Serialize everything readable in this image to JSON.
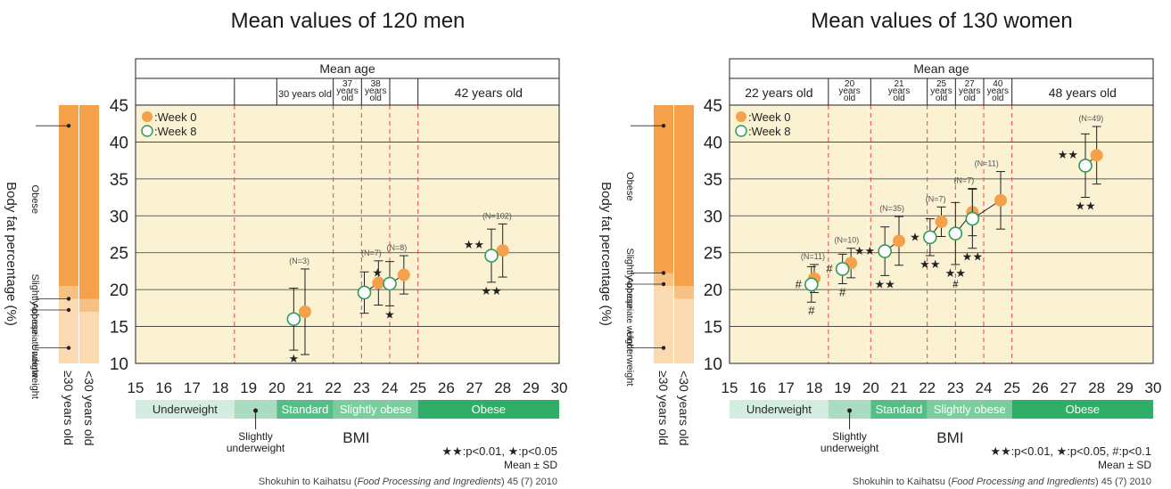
{
  "axis_labels": {
    "y": "Body fat percentage (%)",
    "x": "BMI",
    "age_header": "Mean age",
    "bar_ge30": "≥30 years old",
    "bar_lt30": "<30 years old"
  },
  "bmi_bands": [
    {
      "label": "Underweight",
      "from": 15,
      "to": 18.5,
      "color": "#d3ede0",
      "text_color": "#2a2a2a"
    },
    {
      "label": "",
      "from": 18.5,
      "to": 20,
      "color": "#a9dcc0",
      "text_color": "#2a2a2a"
    },
    {
      "label": "Standard",
      "from": 20,
      "to": 22,
      "color": "#56bd86",
      "text_color": "#ffffff"
    },
    {
      "label": "Slightly obese",
      "from": 22,
      "to": 25,
      "color": "#7acd9d",
      "text_color": "#ffffff"
    },
    {
      "label": "Obese",
      "from": 25,
      "to": 30,
      "color": "#2fae68",
      "text_color": "#ffffff"
    }
  ],
  "slightly_underweight_label": "Slightly\nunderweight",
  "legend": {
    "week0": ":Week 0",
    "week8": ":Week 8"
  },
  "colors": {
    "week0": "#f5a04a",
    "week8": "#2e9c5c",
    "plot_bg": "#fbf2d4",
    "dash": "#e04848"
  },
  "classification_labels": [
    "Obese",
    "Slightly obese",
    "Appropriate weight",
    "Underweight"
  ],
  "footer": {
    "mean_sd": "Mean ± SD",
    "source_prefix": "Shokuhin to Kaihatsu (",
    "source_italic": "Food Processing and Ingredients",
    "source_suffix": ") 45 (7) 2010"
  },
  "chart_data": [
    {
      "type": "scatter",
      "title": "Mean values of 120 men",
      "xlabel": "BMI",
      "ylabel": "Body fat percentage (%)",
      "xlim": [
        15,
        30
      ],
      "ylim": [
        10,
        45
      ],
      "xticks": [
        15,
        16,
        17,
        18,
        19,
        20,
        21,
        22,
        23,
        24,
        25,
        26,
        27,
        28,
        29,
        30
      ],
      "yticks": [
        10,
        15,
        20,
        25,
        30,
        35,
        40,
        45
      ],
      "dashed_x": [
        18.5,
        22,
        23,
        24,
        25
      ],
      "age_cells": [
        {
          "from": 15,
          "to": 18.5,
          "label": ""
        },
        {
          "from": 18.5,
          "to": 20,
          "label": ""
        },
        {
          "from": 20,
          "to": 22,
          "label": "30 years old"
        },
        {
          "from": 22,
          "to": 23,
          "label": "37\nyears\nold"
        },
        {
          "from": 23,
          "to": 24,
          "label": "38\nyears\nold"
        },
        {
          "from": 24,
          "to": 25,
          "label": ""
        },
        {
          "from": 25,
          "to": 30,
          "label": "42 years old"
        }
      ],
      "significance": "★★:p<0.01, ★:p<0.05",
      "bodyfat_bar": {
        "ge30": [
          {
            "from": 0,
            "to": 25,
            "shade": 3
          },
          {
            "from": 25,
            "to": 30,
            "shade": 2
          },
          {
            "from": 30,
            "to": 100,
            "shade": 1
          }
        ],
        "lt30": [
          {
            "from": 0,
            "to": 20,
            "shade": 3
          },
          {
            "from": 20,
            "to": 25,
            "shade": 2
          },
          {
            "from": 25,
            "to": 100,
            "shade": 1
          }
        ],
        "cls_marks": [
          100,
          25,
          20,
          0
        ]
      },
      "groups": [
        {
          "n": "(N=3)",
          "week0": {
            "x": 21.0,
            "y": 17.0,
            "sd": 5.8
          },
          "week8": {
            "x": 20.6,
            "y": 16.0,
            "sd": 4.2
          },
          "sig_above": "",
          "sig_below": "★"
        },
        {
          "n": "(N=7)",
          "week0": {
            "x": 23.6,
            "y": 20.9,
            "sd": 3.0
          },
          "week8": {
            "x": 23.1,
            "y": 19.6,
            "sd": 2.8
          },
          "sig_above": "",
          "sig_below": ""
        },
        {
          "n": "(N=8)",
          "week0": {
            "x": 24.5,
            "y": 22.0,
            "sd": 2.6
          },
          "week8": {
            "x": 24.0,
            "y": 20.8,
            "sd": 3.0
          },
          "sig_above": "★",
          "sig_below": "★"
        },
        {
          "n": "(N=102)",
          "week0": {
            "x": 28.0,
            "y": 25.3,
            "sd": 3.6
          },
          "week8": {
            "x": 27.6,
            "y": 24.6,
            "sd": 3.6
          },
          "sig_above": "★★",
          "sig_below": "★★"
        }
      ]
    },
    {
      "type": "scatter",
      "title": "Mean values of 130 women",
      "xlabel": "BMI",
      "ylabel": "Body fat percentage (%)",
      "xlim": [
        15,
        30
      ],
      "ylim": [
        10,
        45
      ],
      "xticks": [
        15,
        16,
        17,
        18,
        19,
        20,
        21,
        22,
        23,
        24,
        25,
        26,
        27,
        28,
        29,
        30
      ],
      "yticks": [
        10,
        15,
        20,
        25,
        30,
        35,
        40,
        45
      ],
      "dashed_x": [
        18.5,
        20,
        22,
        23,
        24,
        25
      ],
      "age_cells": [
        {
          "from": 15,
          "to": 18.5,
          "label": "22 years old"
        },
        {
          "from": 18.5,
          "to": 20,
          "label": "20\nyears\nold"
        },
        {
          "from": 20,
          "to": 22,
          "label": "21\nyears\nold"
        },
        {
          "from": 22,
          "to": 23,
          "label": "25\nyears\nold"
        },
        {
          "from": 23,
          "to": 24,
          "label": "27\nyears\nold"
        },
        {
          "from": 24,
          "to": 25,
          "label": "40\nyears\nold"
        },
        {
          "from": 25,
          "to": 30,
          "label": "48 years old"
        }
      ],
      "significance": "★★:p<0.01, ★:p<0.05, #:p<0.1",
      "bodyfat_bar": {
        "ge30": [
          {
            "from": 0,
            "to": 30,
            "shade": 3
          },
          {
            "from": 30,
            "to": 35,
            "shade": 2
          },
          {
            "from": 35,
            "to": 100,
            "shade": 1
          }
        ],
        "lt30": [
          {
            "from": 0,
            "to": 25,
            "shade": 3
          },
          {
            "from": 25,
            "to": 30,
            "shade": 2
          },
          {
            "from": 30,
            "to": 100,
            "shade": 1
          }
        ],
        "cls_marks": [
          100,
          35,
          30,
          0
        ]
      },
      "groups": [
        {
          "n": "(N=11)",
          "week0": {
            "x": 18.0,
            "y": 21.5,
            "sd": 1.9
          },
          "week8": {
            "x": 17.9,
            "y": 20.7,
            "sd": 2.4
          },
          "sig_above": "",
          "sig_below": "#",
          "sig_left": "#"
        },
        {
          "n": "(N=10)",
          "week0": {
            "x": 19.3,
            "y": 23.6,
            "sd": 2.0
          },
          "week8": {
            "x": 19.0,
            "y": 22.8,
            "sd": 2.0
          },
          "sig_above": "",
          "sig_below": "#",
          "sig_left": "#"
        },
        {
          "n": "(N=35)",
          "week0": {
            "x": 21.0,
            "y": 26.6,
            "sd": 3.3
          },
          "week8": {
            "x": 20.5,
            "y": 25.2,
            "sd": 3.3
          },
          "sig_above": "",
          "sig_below": "★★",
          "sig_left": "★★"
        },
        {
          "n": "(N=7)",
          "week0": {
            "x": 22.5,
            "y": 29.2,
            "sd": 2.0
          },
          "week8": {
            "x": 22.1,
            "y": 27.1,
            "sd": 2.5
          },
          "sig_above": "",
          "sig_below": "★★",
          "sig_left": "★"
        },
        {
          "n": "(N=7)",
          "week0": {
            "x": 23.6,
            "y": 30.5,
            "sd": 3.2
          },
          "week8": {
            "x": 23.0,
            "y": 27.6,
            "sd": 4.2
          },
          "sig_above": "",
          "sig_below": "★★",
          "sig_left": "",
          "sig_below_w8": "#"
        },
        {
          "n": "(N=11)",
          "week0": {
            "x": 24.6,
            "y": 32.1,
            "sd": 3.9
          },
          "week8": {
            "x": 23.6,
            "y": 29.6,
            "sd": 4.0
          },
          "sig_above": "",
          "sig_below": "★★",
          "sig_left": ""
        },
        {
          "n": "(N=49)",
          "week0": {
            "x": 28.0,
            "y": 38.2,
            "sd": 3.9
          },
          "week8": {
            "x": 27.6,
            "y": 36.8,
            "sd": 4.3
          },
          "sig_above": "★★",
          "sig_below": "★★",
          "sig_left": ""
        }
      ]
    }
  ]
}
